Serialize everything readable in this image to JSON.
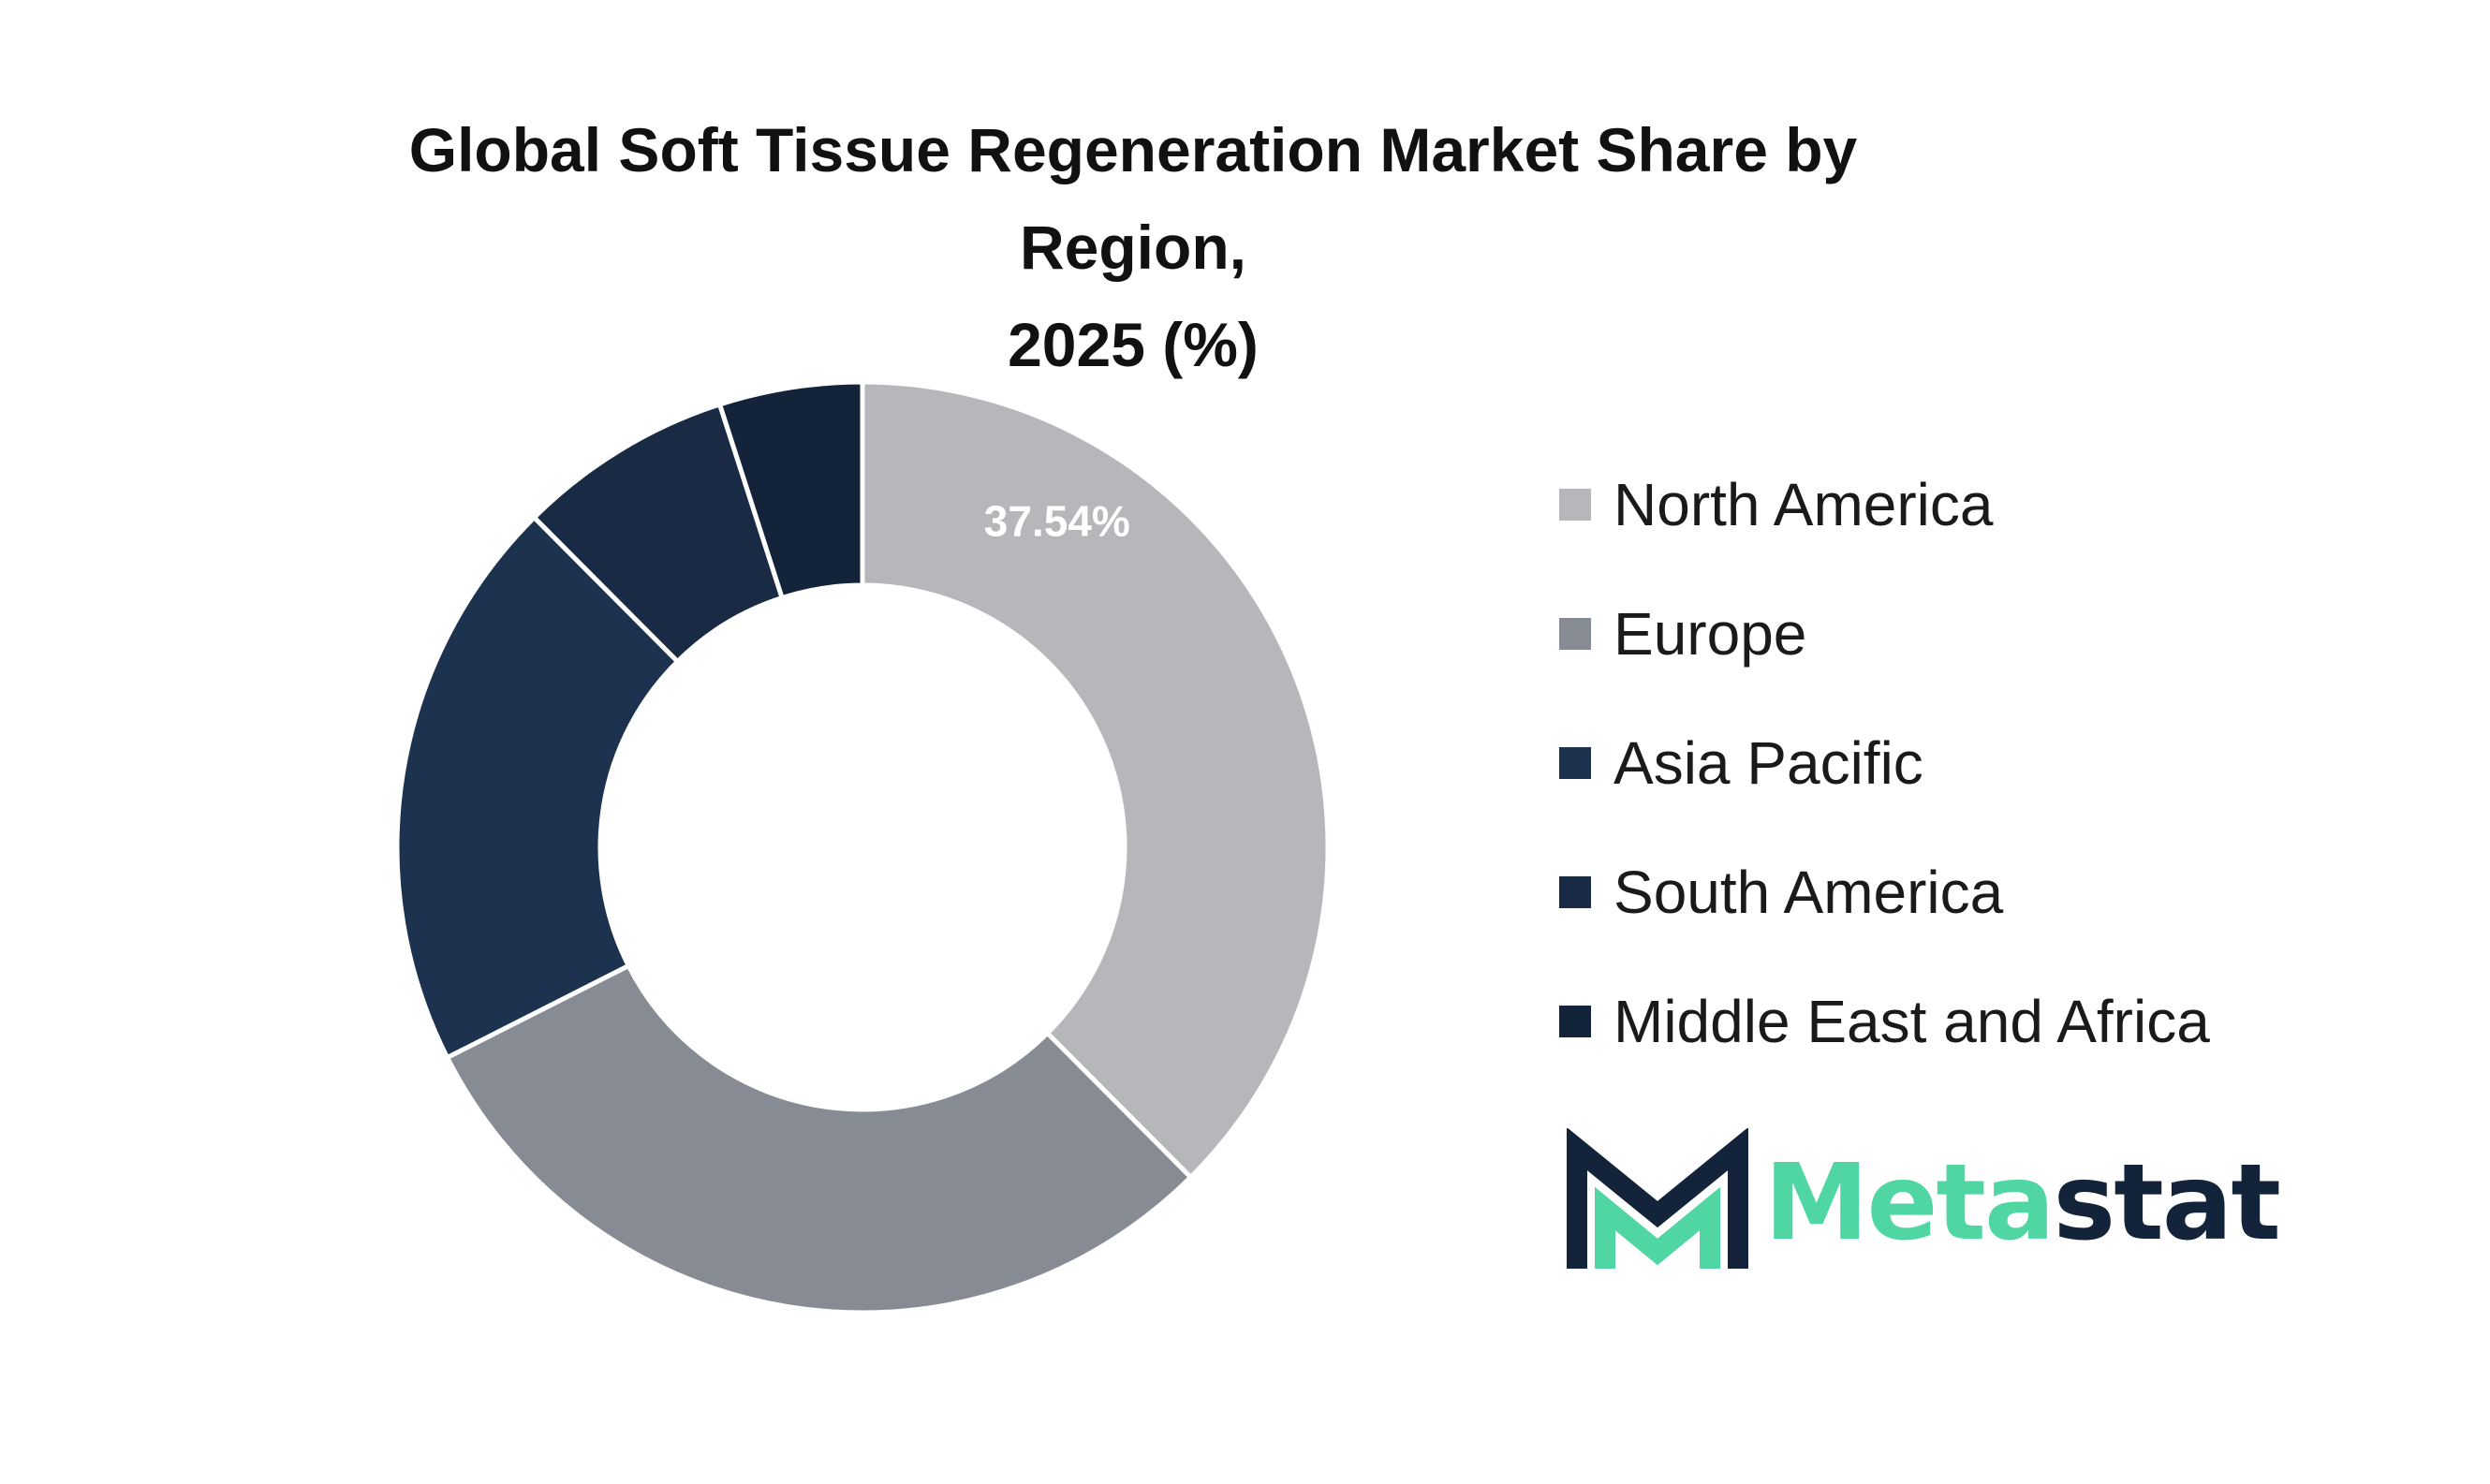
{
  "chart_data": {
    "type": "pie",
    "title_lines": [
      "Global Soft Tissue Regeneration Market Share by Region,",
      "2025 (%)"
    ],
    "categories": [
      "North America",
      "Europe",
      "Asia Pacific",
      "South America",
      "Middle East and Africa"
    ],
    "values": [
      37.54,
      30.0,
      20.0,
      7.5,
      4.96
    ],
    "colors": [
      "#b6b7bb",
      "#878b93",
      "#1c324e",
      "#182a44",
      "#13233a"
    ],
    "data_labels": [
      "37.54%",
      "",
      "",
      "",
      ""
    ],
    "legend_position": "right",
    "donut": true,
    "start_angle": "top",
    "direction": "clockwise"
  },
  "legend": {
    "items": [
      {
        "label": "North America",
        "color": "#b6b7bb"
      },
      {
        "label": "Europe",
        "color": "#878b93"
      },
      {
        "label": "Asia Pacific",
        "color": "#1c324e"
      },
      {
        "label": "South America",
        "color": "#182a44"
      },
      {
        "label": "Middle East and Africa",
        "color": "#13233a"
      }
    ]
  },
  "logo": {
    "text_part1": "Meta",
    "text_part2": "stat",
    "color_accent": "#4fd6a2",
    "color_dark": "#13233a"
  }
}
